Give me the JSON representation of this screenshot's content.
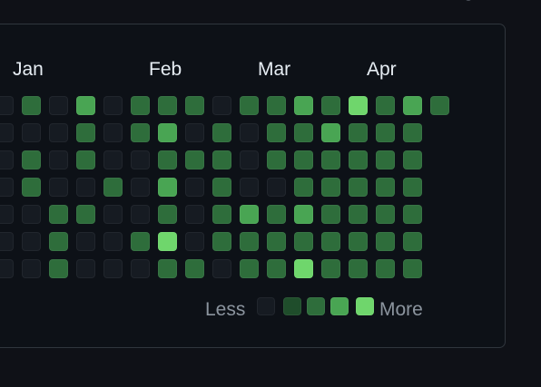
{
  "months": [
    "Jan",
    "Feb",
    "Mar",
    "Apr"
  ],
  "legend": {
    "less_label": "Less",
    "more_label": "More",
    "colors": [
      "#161b22",
      "#1f4d2b",
      "#2e6d3b",
      "#49a553",
      "#6fd66c"
    ]
  },
  "contribution_levels": [
    [
      0,
      2,
      0,
      3,
      0,
      2,
      2,
      2,
      0,
      2,
      2,
      3,
      2,
      4,
      2,
      3,
      2
    ],
    [
      0,
      0,
      0,
      2,
      0,
      2,
      3,
      0,
      2,
      0,
      2,
      2,
      3,
      2,
      2,
      2
    ],
    [
      0,
      2,
      0,
      2,
      0,
      0,
      2,
      2,
      2,
      0,
      2,
      2,
      2,
      2,
      2,
      2
    ],
    [
      0,
      2,
      0,
      0,
      2,
      0,
      3,
      0,
      2,
      0,
      0,
      2,
      2,
      2,
      2,
      2
    ],
    [
      0,
      0,
      2,
      2,
      0,
      0,
      2,
      0,
      2,
      3,
      2,
      3,
      2,
      2,
      2,
      2
    ],
    [
      0,
      0,
      2,
      0,
      0,
      2,
      4,
      0,
      2,
      2,
      2,
      2,
      2,
      2,
      2,
      2
    ],
    [
      0,
      0,
      2,
      0,
      0,
      0,
      2,
      2,
      0,
      2,
      2,
      4,
      2,
      2,
      2,
      2
    ]
  ]
}
